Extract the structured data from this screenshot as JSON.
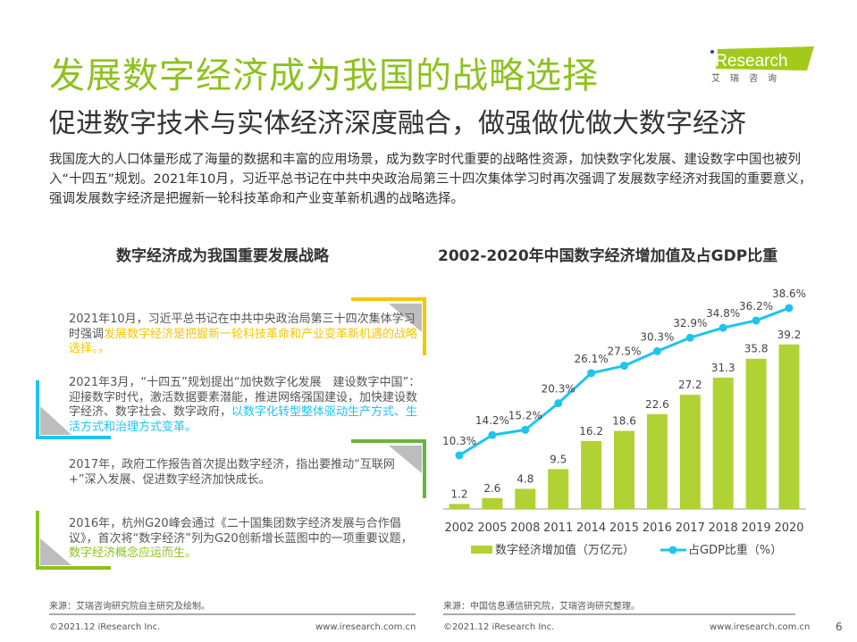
{
  "header": {
    "title": "发展数字经济成为我国的战略选择",
    "subtitle": "促进数字技术与实体经济深度融合，做强做优做大数字经济",
    "logo": {
      "brand": "iResearch",
      "cn": "艾瑞咨询"
    }
  },
  "intro": "我国庞大的人口体量形成了海量的数据和丰富的应用场景，成为数字时代重要的战略性资源，加快数字化发展、建设数字中国也被列入“十四五”规划。2021年10月，习近平总书记在中共中央政治局第三十四次集体学习时再次强调了发展数字经济对我国的重要意义，强调发展数字经济是把握新一轮科技革命和产业变革新机遇的战略选择。",
  "left": {
    "title": "数字经济成为我国重要发展战略",
    "cards": [
      {
        "text": "2021年10月，习近平总书记在中共中央政治局第三十四次集体学习时强调",
        "highlight": "发展数字经济是把握新一轮科技革命和产业变革新机遇的战略选择。，",
        "color": "#f7c600"
      },
      {
        "text": "2021年3月，“十四五”规划提出“加快数字化发展　建设数字中国”：迎接数字时代，激活数据要素潜能，推进网络强国建设，加快建设数字经济、数字社会、数字政府，",
        "highlight": "以数字化转型整体驱动生产方式、生活方式和治理方式变革。",
        "color": "#1ec4ee"
      },
      {
        "text": "2017年，政府工作报告首次提出数字经济，指出要推动“互联网+”深入发展、促进数字经济加快成长。",
        "highlight": "",
        "color": "#6ab43e"
      },
      {
        "text": "2016年，杭州G20峰会通过《二十国集团数字经济发展与合作倡议》，首次将“数字经济”列为G20创新增长蓝图中的一项重要议题，",
        "highlight": "数字经济概念应运而生。",
        "color": "#8dc21f"
      }
    ],
    "source": "来源：艾瑞咨询研究院自主研究及绘制。"
  },
  "chart_data": {
    "type": "bar+line",
    "title": "2002-2020年中国数字经济增加值及占GDP比重",
    "categories": [
      "2002",
      "2005",
      "2008",
      "2011",
      "2014",
      "2015",
      "2016",
      "2017",
      "2018",
      "2019",
      "2020"
    ],
    "series": [
      {
        "name": "数字经济增加值（万亿元）",
        "type": "bar",
        "color": "#b1d235",
        "values": [
          1.2,
          2.6,
          4.8,
          9.5,
          16.2,
          18.6,
          22.6,
          27.2,
          31.3,
          35.8,
          39.2
        ],
        "labels": [
          "1.2",
          "2.6",
          "4.8",
          "9.5",
          "16.2",
          "18.6",
          "22.6",
          "27.2",
          "31.3",
          "35.8",
          "39.2"
        ]
      },
      {
        "name": "占GDP比重（%）",
        "type": "line",
        "color": "#1ec4ee",
        "values": [
          10.3,
          14.2,
          15.2,
          20.3,
          26.1,
          27.5,
          30.3,
          32.9,
          34.8,
          36.2,
          38.6
        ],
        "labels": [
          "10.3%",
          "14.2%",
          "15.2%",
          "20.3%",
          "26.1%",
          "27.5%",
          "30.3%",
          "32.9%",
          "34.8%",
          "36.2%",
          "38.6%"
        ]
      }
    ],
    "legend": "bottom",
    "grid": false,
    "source": "来源：中国信息通信研究院，艾瑞咨询研究整理。"
  },
  "footer": {
    "copyright": "©2021.12 iResearch Inc.",
    "url": "www.iresearch.com.cn",
    "page": "6"
  }
}
